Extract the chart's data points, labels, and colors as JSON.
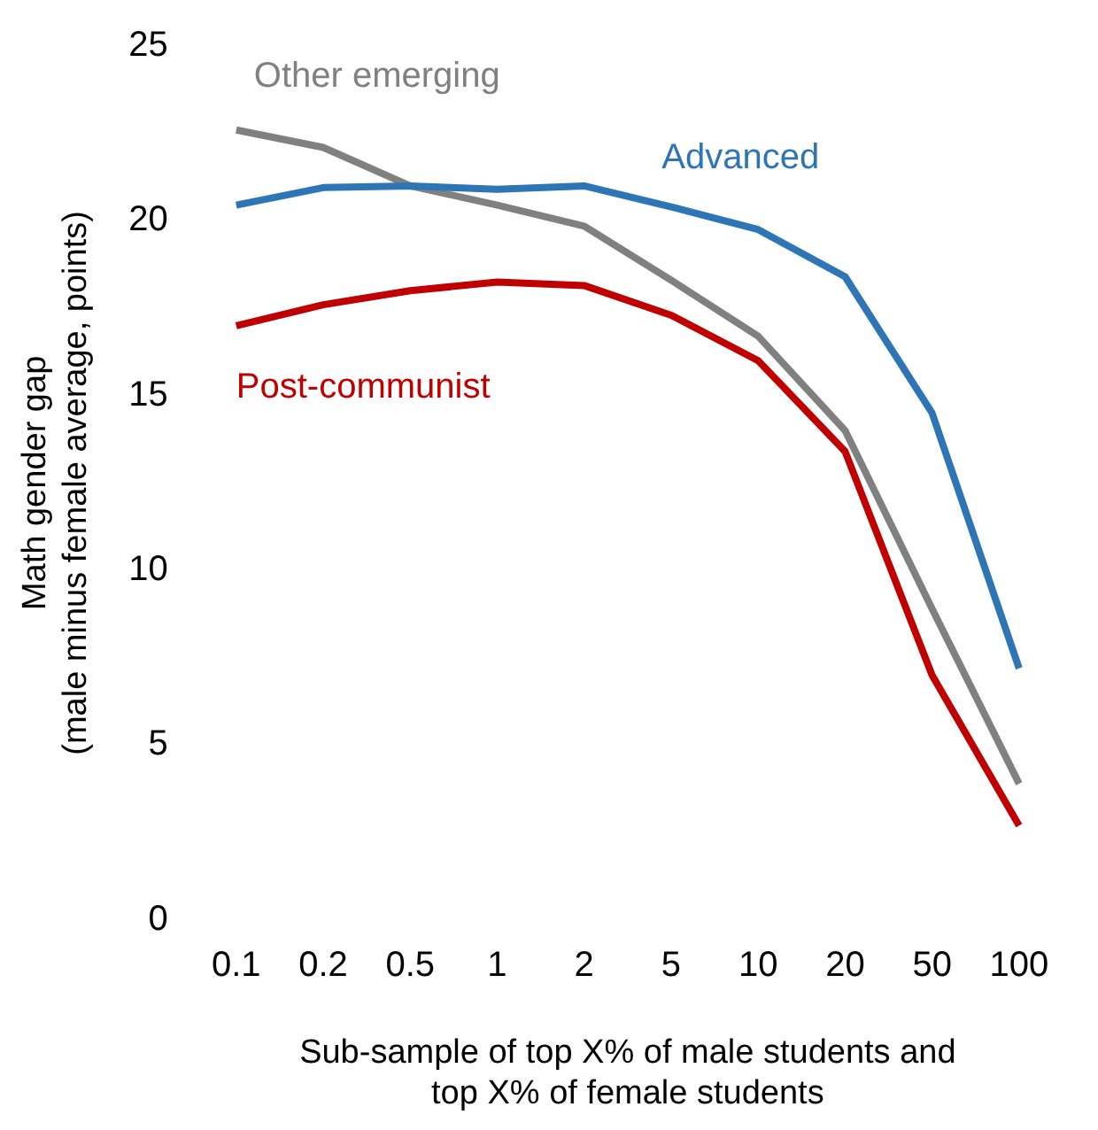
{
  "chart_data": {
    "type": "line",
    "xlabel": "Sub-sample of top X% of male students and\ntop X% of female students",
    "ylabel": "Math gender gap\n(male minus female average, points)",
    "categories": [
      "0.1",
      "0.2",
      "0.5",
      "1",
      "2",
      "5",
      "10",
      "20",
      "50",
      "100"
    ],
    "ylim": [
      0,
      25
    ],
    "yticks": [
      0,
      5,
      10,
      15,
      20,
      25
    ],
    "grid": false,
    "legend": false,
    "marker": "none",
    "line_style": "solid",
    "series": [
      {
        "name": "Advanced",
        "color": "#2e75b6",
        "values": [
          20.45,
          20.95,
          21.0,
          20.9,
          21.0,
          20.4,
          19.75,
          18.4,
          14.5,
          7.2
        ]
      },
      {
        "name": "Other emerging",
        "color": "#808080",
        "values": [
          22.6,
          22.1,
          21.0,
          20.45,
          19.85,
          18.3,
          16.7,
          14.0,
          8.9,
          3.9
        ]
      },
      {
        "name": "Post-communist",
        "color": "#c00000",
        "values": [
          17.0,
          17.6,
          18.0,
          18.25,
          18.15,
          17.3,
          16.0,
          13.4,
          7.0,
          2.7
        ]
      }
    ]
  }
}
